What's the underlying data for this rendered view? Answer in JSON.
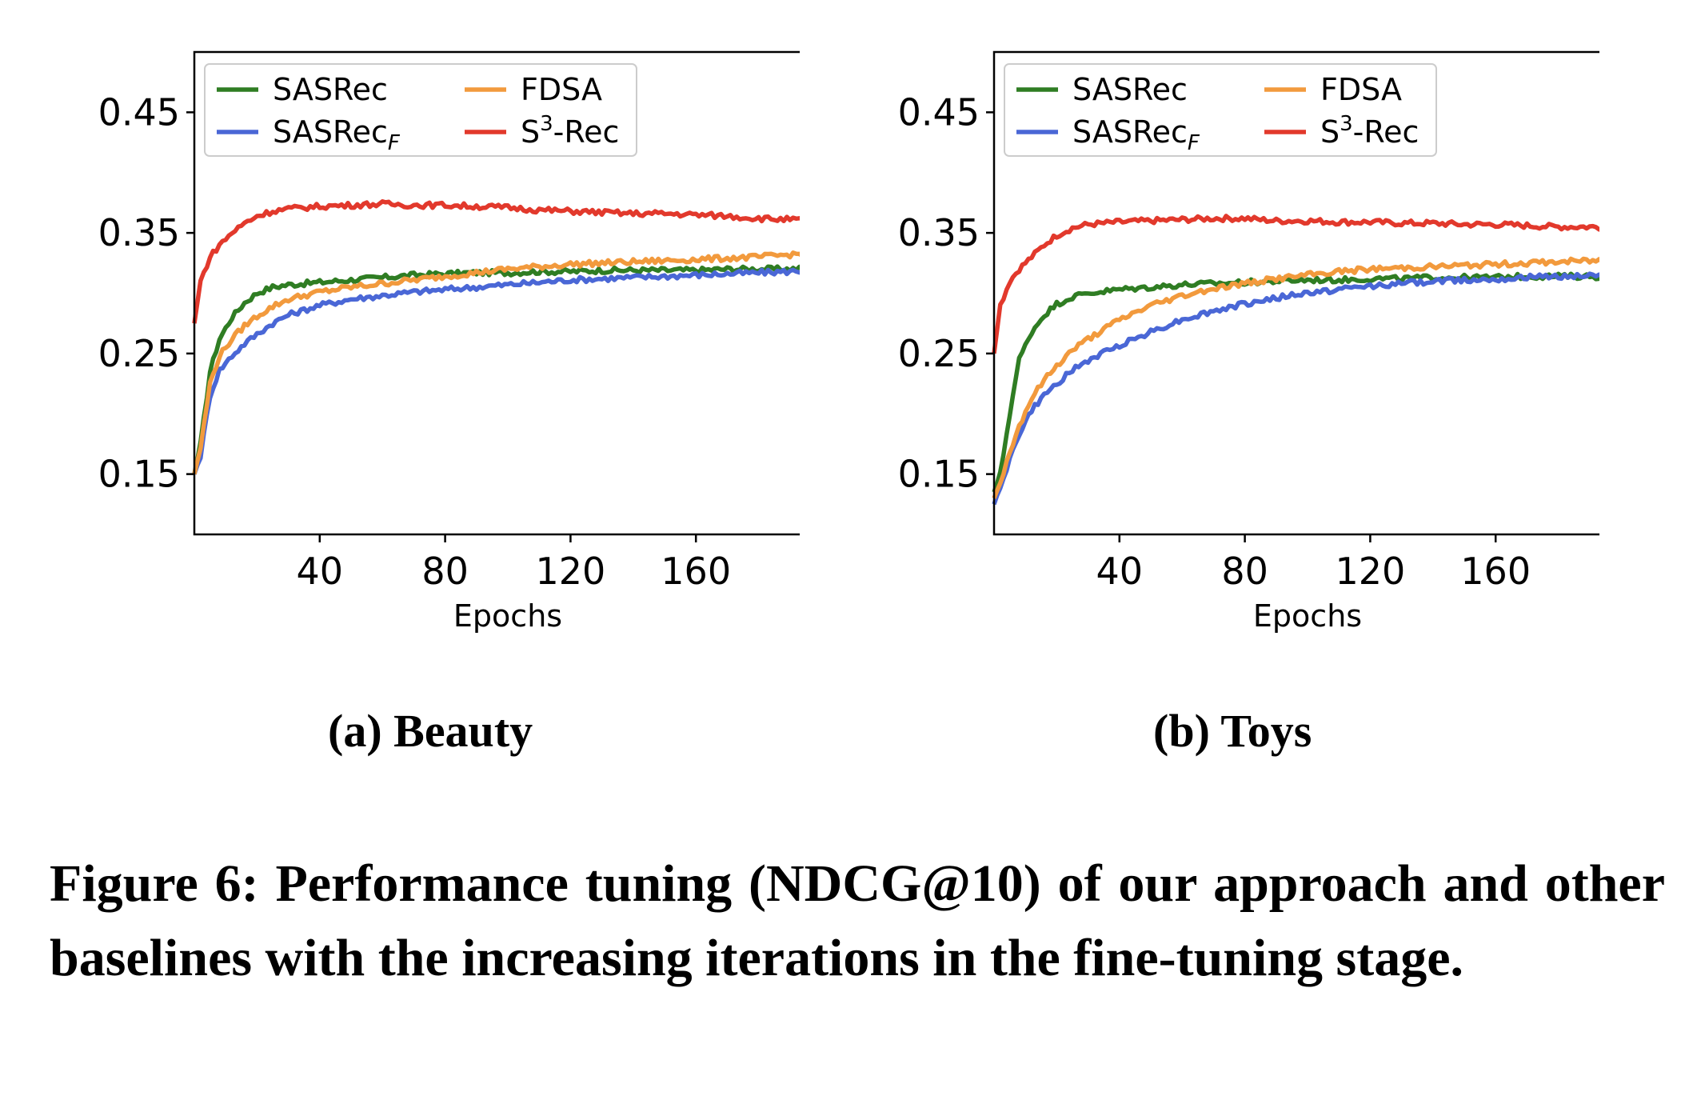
{
  "chart_data": [
    {
      "type": "line",
      "title": "(a) Beauty",
      "xlabel": "Epochs",
      "ylabel": "",
      "xlim": [
        0,
        200
      ],
      "ylim": [
        0.1,
        0.5
      ],
      "xticks": [
        40,
        80,
        120,
        160
      ],
      "yticks": [
        0.15,
        0.25,
        0.35,
        0.45
      ],
      "xtick_labels": [
        "40",
        "80",
        "120",
        "160"
      ],
      "ytick_labels": [
        "0.15",
        "0.25",
        "0.35",
        "0.45"
      ],
      "grid": false,
      "legend_position": "top-left",
      "x": [
        0,
        2,
        5,
        8,
        12,
        16,
        20,
        25,
        30,
        40,
        50,
        60,
        70,
        80,
        90,
        100,
        110,
        120,
        130,
        140,
        150,
        160,
        170,
        180,
        190,
        200
      ],
      "series": [
        {
          "name": "SASRec",
          "label_main": "SASRec",
          "label_sub": "",
          "label_sup": "",
          "label_tail": "",
          "color": "#2f7d23",
          "values": [
            0.15,
            0.175,
            0.235,
            0.262,
            0.28,
            0.292,
            0.3,
            0.305,
            0.307,
            0.309,
            0.311,
            0.313,
            0.315,
            0.316,
            0.317,
            0.317,
            0.318,
            0.318,
            0.319,
            0.319,
            0.319,
            0.319,
            0.32,
            0.32,
            0.32,
            0.321
          ]
        },
        {
          "name": "SASRecF",
          "label_main": "SASRec",
          "label_sub": "F",
          "label_sup": "",
          "label_tail": "",
          "color": "#4a67d6",
          "values": [
            0.15,
            0.165,
            0.215,
            0.236,
            0.248,
            0.258,
            0.266,
            0.275,
            0.282,
            0.29,
            0.295,
            0.298,
            0.301,
            0.303,
            0.305,
            0.307,
            0.309,
            0.311,
            0.312,
            0.313,
            0.314,
            0.315,
            0.316,
            0.317,
            0.318,
            0.32
          ]
        },
        {
          "name": "FDSA",
          "label_main": "FDSA",
          "label_sub": "",
          "label_sup": "",
          "label_tail": "",
          "color": "#f29a3d",
          "values": [
            0.15,
            0.172,
            0.225,
            0.248,
            0.262,
            0.273,
            0.281,
            0.289,
            0.295,
            0.301,
            0.305,
            0.308,
            0.311,
            0.314,
            0.317,
            0.32,
            0.322,
            0.324,
            0.325,
            0.326,
            0.327,
            0.328,
            0.329,
            0.33,
            0.332,
            0.334
          ]
        },
        {
          "name": "S3-Rec",
          "label_main": "S",
          "label_sub": "",
          "label_sup": "3",
          "label_tail": "-Rec",
          "color": "#e2392c",
          "values": [
            0.275,
            0.31,
            0.33,
            0.34,
            0.35,
            0.358,
            0.364,
            0.368,
            0.37,
            0.372,
            0.373,
            0.374,
            0.373,
            0.373,
            0.372,
            0.371,
            0.369,
            0.368,
            0.367,
            0.366,
            0.366,
            0.365,
            0.364,
            0.362,
            0.361,
            0.36
          ]
        }
      ]
    },
    {
      "type": "line",
      "title": "(b) Toys",
      "xlabel": "Epochs",
      "ylabel": "",
      "xlim": [
        0,
        200
      ],
      "ylim": [
        0.1,
        0.5
      ],
      "xticks": [
        40,
        80,
        120,
        160
      ],
      "yticks": [
        0.15,
        0.25,
        0.35,
        0.45
      ],
      "xtick_labels": [
        "40",
        "80",
        "120",
        "160"
      ],
      "ytick_labels": [
        "0.15",
        "0.25",
        "0.35",
        "0.45"
      ],
      "grid": false,
      "legend_position": "top-left",
      "x": [
        0,
        2,
        5,
        8,
        12,
        16,
        20,
        25,
        30,
        40,
        50,
        60,
        70,
        80,
        90,
        100,
        110,
        120,
        130,
        140,
        150,
        160,
        170,
        180,
        190,
        200
      ],
      "series": [
        {
          "name": "SASRec",
          "label_main": "SASRec",
          "label_sub": "",
          "label_sup": "",
          "label_tail": "",
          "color": "#2f7d23",
          "values": [
            0.135,
            0.15,
            0.2,
            0.245,
            0.268,
            0.282,
            0.291,
            0.297,
            0.3,
            0.303,
            0.305,
            0.307,
            0.308,
            0.309,
            0.31,
            0.311,
            0.311,
            0.312,
            0.312,
            0.313,
            0.313,
            0.313,
            0.314,
            0.314,
            0.314,
            0.313
          ]
        },
        {
          "name": "SASRecF",
          "label_main": "SASRec",
          "label_sub": "F",
          "label_sup": "",
          "label_tail": "",
          "color": "#4a67d6",
          "values": [
            0.125,
            0.14,
            0.162,
            0.183,
            0.203,
            0.215,
            0.225,
            0.236,
            0.244,
            0.257,
            0.268,
            0.278,
            0.285,
            0.291,
            0.296,
            0.3,
            0.303,
            0.306,
            0.308,
            0.31,
            0.311,
            0.312,
            0.313,
            0.314,
            0.315,
            0.317
          ]
        },
        {
          "name": "FDSA",
          "label_main": "FDSA",
          "label_sub": "",
          "label_sup": "",
          "label_tail": "",
          "color": "#f29a3d",
          "values": [
            0.13,
            0.143,
            0.168,
            0.19,
            0.213,
            0.228,
            0.24,
            0.253,
            0.262,
            0.278,
            0.29,
            0.298,
            0.304,
            0.308,
            0.312,
            0.315,
            0.318,
            0.32,
            0.321,
            0.322,
            0.323,
            0.324,
            0.325,
            0.326,
            0.327,
            0.327
          ]
        },
        {
          "name": "S3-Rec",
          "label_main": "S",
          "label_sub": "",
          "label_sup": "3",
          "label_tail": "-Rec",
          "color": "#e2392c",
          "values": [
            0.25,
            0.29,
            0.31,
            0.32,
            0.33,
            0.34,
            0.348,
            0.354,
            0.357,
            0.359,
            0.36,
            0.361,
            0.362,
            0.362,
            0.36,
            0.36,
            0.359,
            0.359,
            0.358,
            0.358,
            0.357,
            0.357,
            0.356,
            0.355,
            0.355,
            0.354
          ]
        }
      ]
    }
  ],
  "subcaptions": {
    "a": "(a) Beauty",
    "b": "(b) Toys"
  },
  "caption": "Figure 6: Performance tuning (NDCG@10) of our approach and other baselines with the increasing iterations in the fine-tuning stage."
}
